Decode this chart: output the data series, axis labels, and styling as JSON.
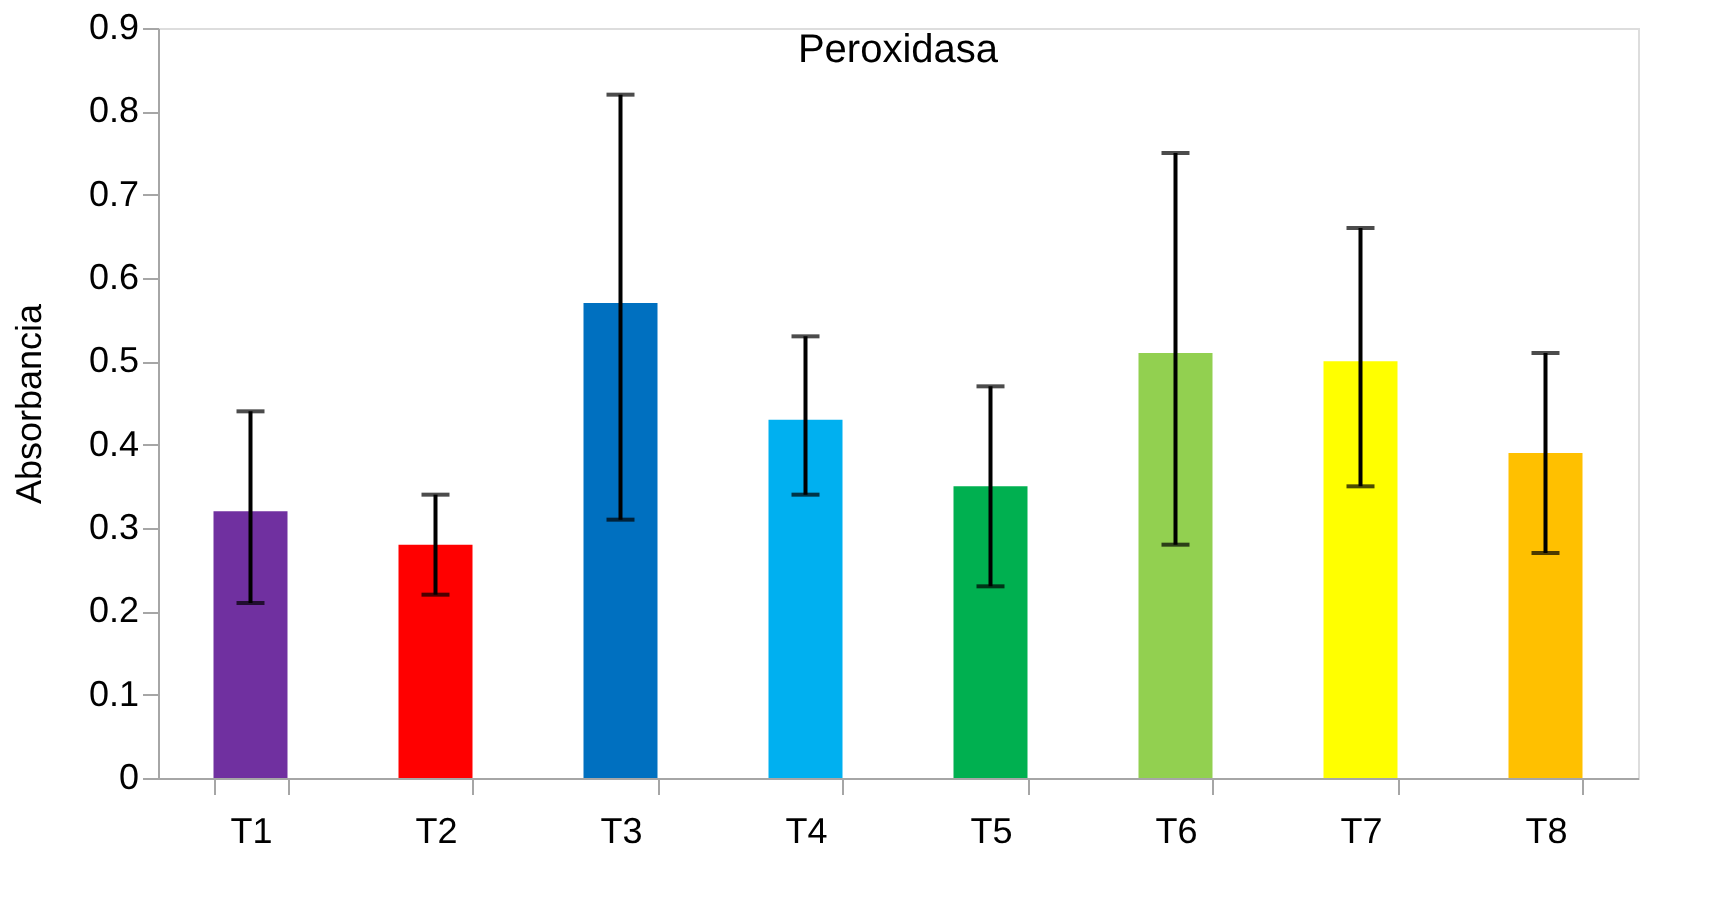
{
  "chart_data": {
    "type": "bar",
    "title": "Peroxidasa",
    "ylabel": "Absorbancia",
    "categories": [
      "T1",
      "T2",
      "T3",
      "T4",
      "T5",
      "T6",
      "T7",
      "T8"
    ],
    "values": [
      0.32,
      0.28,
      0.57,
      0.43,
      0.35,
      0.51,
      0.5,
      0.39
    ],
    "colors": [
      "#7030a0",
      "#ff0000",
      "#0070c0",
      "#00b0f0",
      "#00b050",
      "#92d050",
      "#ffff00",
      "#ffc000"
    ],
    "errors": [
      [
        0.21,
        0.44
      ],
      [
        0.22,
        0.34
      ],
      [
        0.31,
        0.82
      ],
      [
        0.34,
        0.53
      ],
      [
        0.23,
        0.47
      ],
      [
        0.28,
        0.75
      ],
      [
        0.35,
        0.66
      ],
      [
        0.27,
        0.51
      ]
    ],
    "ylim": [
      0,
      0.9
    ],
    "yticks": [
      0,
      0.1,
      0.2,
      0.3,
      0.4,
      0.5,
      0.6,
      0.7,
      0.8,
      0.9
    ],
    "grid": false
  }
}
